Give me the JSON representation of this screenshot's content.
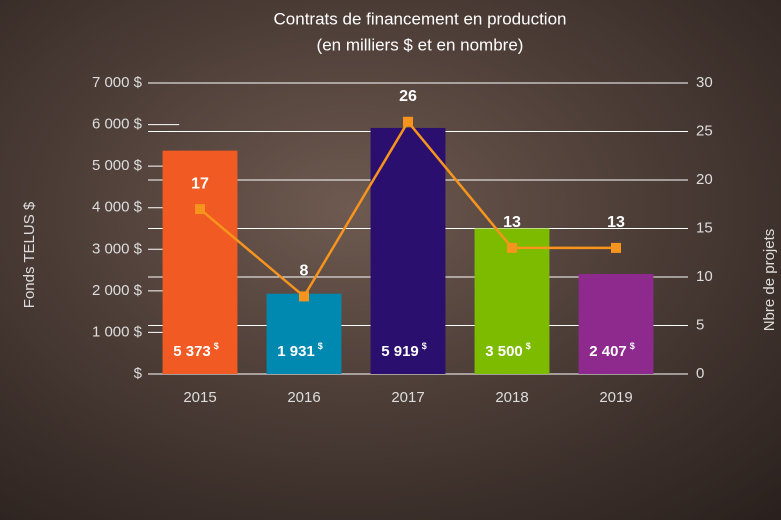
{
  "chart_data": {
    "type": "bar",
    "title": "Contrats de financement en production",
    "subtitle": "(en milliers $ et en nombre)",
    "y_label": "Fonds TELUS $",
    "y2_label": "Nbre de projets",
    "categories": [
      "2015",
      "2016",
      "2017",
      "2018",
      "2019"
    ],
    "series": [
      {
        "type": "bar",
        "colors": [
          "#f15a22",
          "#0089b0",
          "#2a0f6e",
          "#7cbb00",
          "#8e2a8e"
        ],
        "values": [
          5373,
          1931,
          5919,
          3500,
          2407
        ],
        "value_labels": [
          "5 373",
          "1 931",
          "5 919",
          "3 500",
          "2 407"
        ]
      },
      {
        "type": "line",
        "axis": "y2",
        "color": "#f7941d",
        "values": [
          17,
          8,
          26,
          13,
          13
        ]
      }
    ],
    "value_label_unit": "$",
    "ylim": [
      0,
      7000
    ],
    "yticks": [
      {
        "value": 0,
        "label": "$"
      },
      {
        "value": 1000,
        "label": "1 000 $"
      },
      {
        "value": 2000,
        "label": "2 000 $"
      },
      {
        "value": 3000,
        "label": "3 000 $"
      },
      {
        "value": 4000,
        "label": "4 000 $"
      },
      {
        "value": 5000,
        "label": "5 000 $"
      },
      {
        "value": 6000,
        "label": "6 000 $"
      },
      {
        "value": 7000,
        "label": "7 000 $"
      }
    ],
    "y2lim": [
      0,
      30
    ],
    "y2ticks": [
      0,
      5,
      10,
      15,
      20,
      25,
      30
    ],
    "grid": true
  }
}
